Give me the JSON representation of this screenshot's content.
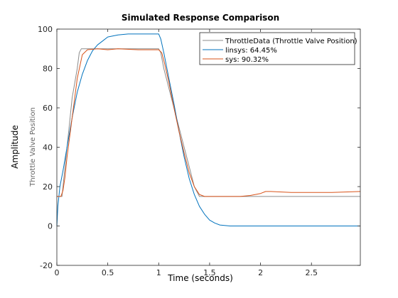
{
  "chart_data": {
    "type": "line",
    "title": "Simulated Response Comparison",
    "xlabel": "Time (seconds)",
    "ylabel": "Amplitude",
    "sub_ylabel": "Throttle Valve Position",
    "xlim": [
      0,
      2.98
    ],
    "ylim": [
      -20,
      100
    ],
    "xticks": [
      0,
      0.5,
      1,
      1.5,
      2,
      2.5
    ],
    "xtick_labels": [
      "0",
      "0.5",
      "1",
      "1.5",
      "2",
      "2.5"
    ],
    "yticks": [
      -20,
      0,
      20,
      40,
      60,
      80,
      100
    ],
    "ytick_labels": [
      "-20",
      "0",
      "20",
      "40",
      "60",
      "80",
      "100"
    ],
    "grid": false,
    "legend_position": "top-right",
    "series": [
      {
        "name": "ThrottleData (Throttle Valve Position)",
        "color": "#8c8c8c",
        "x": [
          0,
          0.02,
          0.05,
          0.1,
          0.15,
          0.2,
          0.22,
          0.24,
          0.3,
          0.5,
          0.8,
          1.0,
          1.02,
          1.05,
          1.1,
          1.2,
          1.3,
          1.35,
          1.4,
          1.5,
          1.8,
          2.0,
          2.5,
          2.98
        ],
        "y": [
          15,
          15,
          15,
          40,
          65,
          80,
          88,
          90,
          90,
          90,
          90,
          90,
          88,
          80,
          70,
          50,
          30,
          20,
          15,
          15,
          15,
          15,
          15,
          15
        ]
      },
      {
        "name": "linsys: 64.45%",
        "color": "#0072bd",
        "x": [
          0,
          0.01,
          0.03,
          0.06,
          0.1,
          0.15,
          0.2,
          0.25,
          0.3,
          0.35,
          0.4,
          0.45,
          0.5,
          0.6,
          0.7,
          0.8,
          0.9,
          1.0,
          1.02,
          1.05,
          1.1,
          1.15,
          1.2,
          1.25,
          1.3,
          1.35,
          1.4,
          1.45,
          1.5,
          1.55,
          1.6,
          1.7,
          1.8,
          2.0,
          2.5,
          2.98
        ],
        "y": [
          0,
          10,
          20,
          28,
          40,
          55,
          68,
          77,
          84,
          89,
          92,
          94,
          96,
          97,
          97.5,
          97.5,
          97.5,
          97.5,
          95,
          88,
          75,
          62,
          48,
          35,
          24,
          16,
          10,
          6,
          3,
          1.5,
          0.5,
          0,
          0,
          0,
          0,
          0
        ]
      },
      {
        "name": "sys: 90.32%",
        "color": "#d95319",
        "x": [
          0,
          0.02,
          0.04,
          0.06,
          0.08,
          0.1,
          0.15,
          0.2,
          0.25,
          0.3,
          0.4,
          0.5,
          0.6,
          0.8,
          1.0,
          1.03,
          1.06,
          1.1,
          1.15,
          1.2,
          1.25,
          1.3,
          1.35,
          1.4,
          1.45,
          1.5,
          1.6,
          1.8,
          1.9,
          2.0,
          2.05,
          2.1,
          2.3,
          2.5,
          2.7,
          2.98
        ],
        "y": [
          15,
          15,
          15,
          18,
          25,
          35,
          55,
          75,
          87,
          89.5,
          90,
          89.5,
          90,
          89.5,
          89.5,
          88,
          82,
          73,
          60,
          48,
          37,
          27,
          20,
          16,
          15,
          15,
          15,
          15,
          15.5,
          16.5,
          17.5,
          17.5,
          17,
          17,
          17,
          17.5
        ]
      }
    ]
  }
}
